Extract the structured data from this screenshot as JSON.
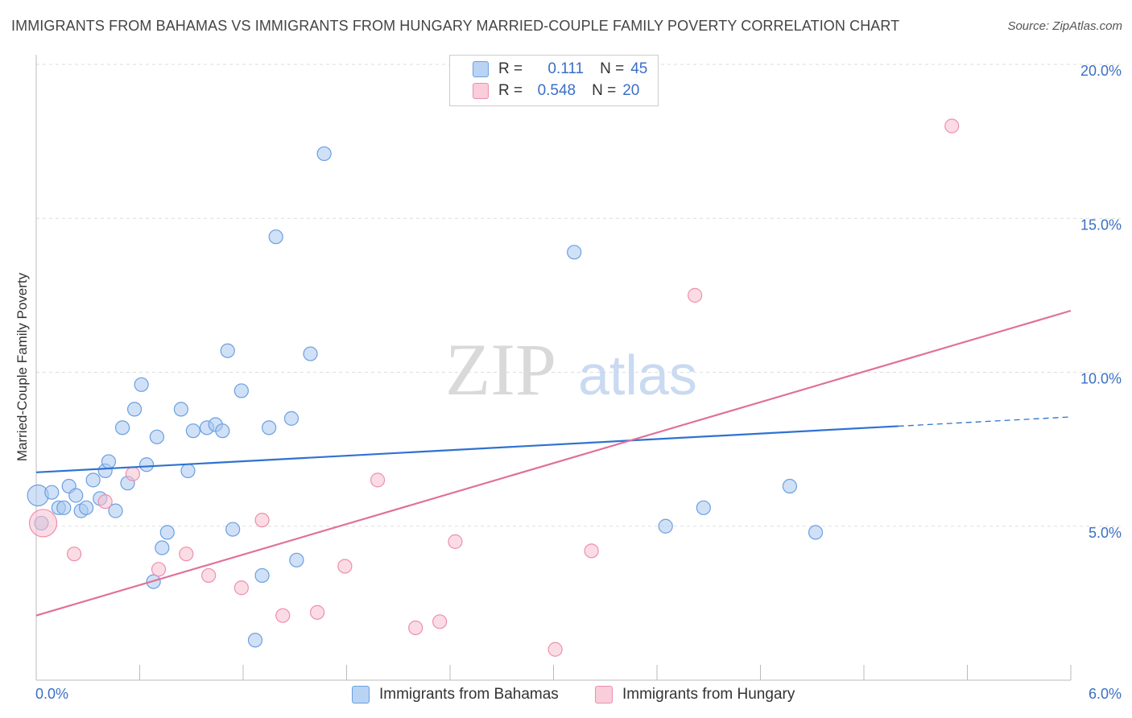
{
  "header": {
    "title": "IMMIGRANTS FROM BAHAMAS VS IMMIGRANTS FROM HUNGARY MARRIED-COUPLE FAMILY POVERTY CORRELATION CHART",
    "source": "Source: ZipAtlas.com"
  },
  "watermark": {
    "zip": "ZIP",
    "atlas": "atlas"
  },
  "legend": {
    "r_label": "R =",
    "n_label": "N =",
    "bahamas": {
      "r": "0.111",
      "n": "45"
    },
    "hungary": {
      "r": "0.548",
      "n": "20"
    }
  },
  "colors": {
    "bahamas_fill": "#a9c8f0",
    "bahamas_stroke": "#6a9fe0",
    "bahamas_line": "#2f72d0",
    "hungary_fill": "#f7bfd0",
    "hungary_stroke": "#ec8fae",
    "hungary_line": "#e0709a",
    "tick_label": "#3a6fc4"
  },
  "chart_data": {
    "type": "scatter",
    "title": "IMMIGRANTS FROM BAHAMAS VS IMMIGRANTS FROM HUNGARY MARRIED-COUPLE FAMILY POVERTY CORRELATION CHART",
    "xlabel": "",
    "ylabel": "Married-Couple Family Poverty",
    "xlim": [
      0,
      6
    ],
    "ylim": [
      0,
      20
    ],
    "x_tick_labels": [
      "0.0%",
      "6.0%"
    ],
    "y_ticks": [
      5,
      10,
      15,
      20
    ],
    "y_tick_labels": [
      "5.0%",
      "10.0%",
      "15.0%",
      "20.0%"
    ],
    "grid": true,
    "legend_position": "top-center",
    "series": [
      {
        "name": "Immigrants from Bahamas",
        "r": 0.111,
        "n": 45,
        "points": [
          [
            0.01,
            6.0
          ],
          [
            0.03,
            5.1
          ],
          [
            0.09,
            6.1
          ],
          [
            0.13,
            5.6
          ],
          [
            0.16,
            5.6
          ],
          [
            0.19,
            6.3
          ],
          [
            0.23,
            6.0
          ],
          [
            0.26,
            5.5
          ],
          [
            0.29,
            5.6
          ],
          [
            0.33,
            6.5
          ],
          [
            0.37,
            5.9
          ],
          [
            0.4,
            6.8
          ],
          [
            0.42,
            7.1
          ],
          [
            0.46,
            5.5
          ],
          [
            0.5,
            8.2
          ],
          [
            0.53,
            6.4
          ],
          [
            0.57,
            8.8
          ],
          [
            0.61,
            9.6
          ],
          [
            0.64,
            7.0
          ],
          [
            0.68,
            3.2
          ],
          [
            0.7,
            7.9
          ],
          [
            0.73,
            4.3
          ],
          [
            0.76,
            4.8
          ],
          [
            0.84,
            8.8
          ],
          [
            0.88,
            6.8
          ],
          [
            0.91,
            8.1
          ],
          [
            0.99,
            8.2
          ],
          [
            1.04,
            8.3
          ],
          [
            1.08,
            8.1
          ],
          [
            1.11,
            10.7
          ],
          [
            1.14,
            4.9
          ],
          [
            1.19,
            9.4
          ],
          [
            1.27,
            1.3
          ],
          [
            1.31,
            3.4
          ],
          [
            1.35,
            8.2
          ],
          [
            1.39,
            14.4
          ],
          [
            1.48,
            8.5
          ],
          [
            1.51,
            3.9
          ],
          [
            1.59,
            10.6
          ],
          [
            1.67,
            17.1
          ],
          [
            3.12,
            13.9
          ],
          [
            3.65,
            5.0
          ],
          [
            3.87,
            5.6
          ],
          [
            4.37,
            6.3
          ],
          [
            4.52,
            4.8
          ]
        ],
        "trend": {
          "x0": 0,
          "y0": 6.75,
          "x1": 6.0,
          "y1": 8.55,
          "solid_until_x": 5.0
        }
      },
      {
        "name": "Immigrants from Hungary",
        "r": 0.548,
        "n": 20,
        "points": [
          [
            0.04,
            5.1
          ],
          [
            0.22,
            4.1
          ],
          [
            0.4,
            5.8
          ],
          [
            0.56,
            6.7
          ],
          [
            0.71,
            3.6
          ],
          [
            0.87,
            4.1
          ],
          [
            1.0,
            3.4
          ],
          [
            1.19,
            3.0
          ],
          [
            1.31,
            5.2
          ],
          [
            1.43,
            2.1
          ],
          [
            1.63,
            2.2
          ],
          [
            1.79,
            3.7
          ],
          [
            1.98,
            6.5
          ],
          [
            2.2,
            1.7
          ],
          [
            2.34,
            1.9
          ],
          [
            2.43,
            4.5
          ],
          [
            3.01,
            1.0
          ],
          [
            3.22,
            4.2
          ],
          [
            3.82,
            12.5
          ],
          [
            5.31,
            18.0
          ]
        ],
        "trend": {
          "x0": 0,
          "y0": 2.1,
          "x1": 6.0,
          "y1": 12.0
        }
      }
    ]
  }
}
